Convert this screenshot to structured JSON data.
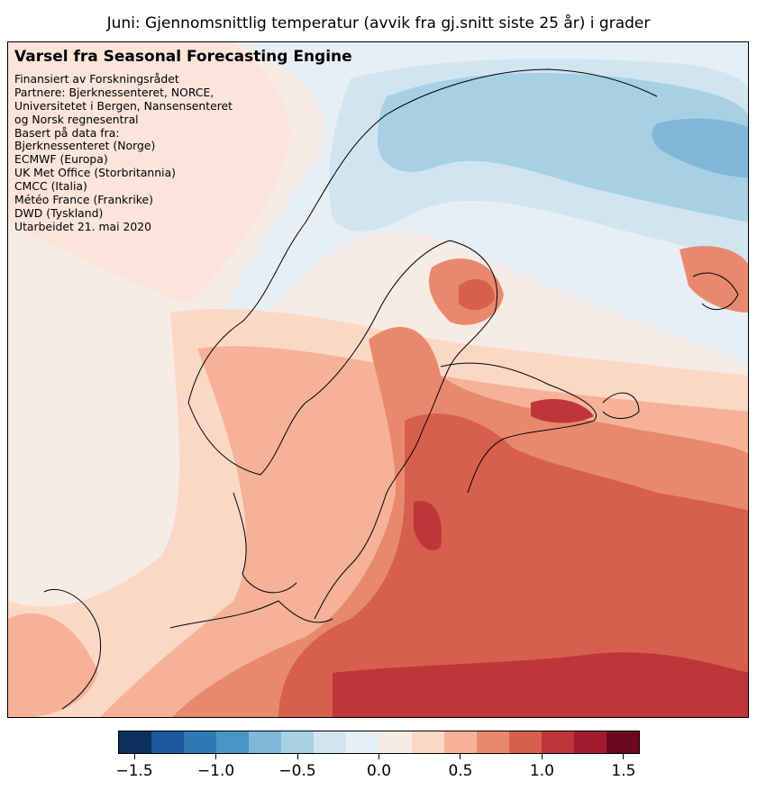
{
  "title": "Juni: Gjennomsnittlig temperatur (avvik fra gj.snitt siste 25 år) i grader",
  "info": {
    "heading": "Varsel fra Seasonal Forecasting Engine",
    "lines": [
      "Finansiert av Forskningsrådet",
      "Partnere: Bjerknessenteret, NORCE,",
      "Universitetet i Bergen, Nansensenteret",
      "og Norsk regnesentral",
      "Basert på data fra:",
      "Bjerknessenteret (Norge)",
      "ECMWF (Europa)",
      "UK Met Office (Storbritannia)",
      "CMCC (Italia)",
      "Météo France (Frankrike)",
      "DWD (Tyskland)",
      "Utarbeidet 21. mai 2020"
    ]
  },
  "colorbar": {
    "min": -1.6,
    "max": 1.6,
    "step": 0.2,
    "ticks": [
      "-1.5",
      "-1.0",
      "-0.5",
      "0.0",
      "0.5",
      "1.0",
      "1.5"
    ],
    "tick_values": [
      -1.5,
      -1.0,
      -0.5,
      0.0,
      0.5,
      1.0,
      1.5
    ],
    "colors": [
      "#0b2f5e",
      "#1d589e",
      "#2f78b6",
      "#4a95c5",
      "#80b7d8",
      "#a7d0e4",
      "#d1e5f0",
      "#e8eff4",
      "#f7ebe5",
      "#fbd8c6",
      "#f5b298",
      "#e8896d",
      "#d6604d",
      "#c0353a",
      "#a11a2e",
      "#6a0921"
    ]
  }
}
